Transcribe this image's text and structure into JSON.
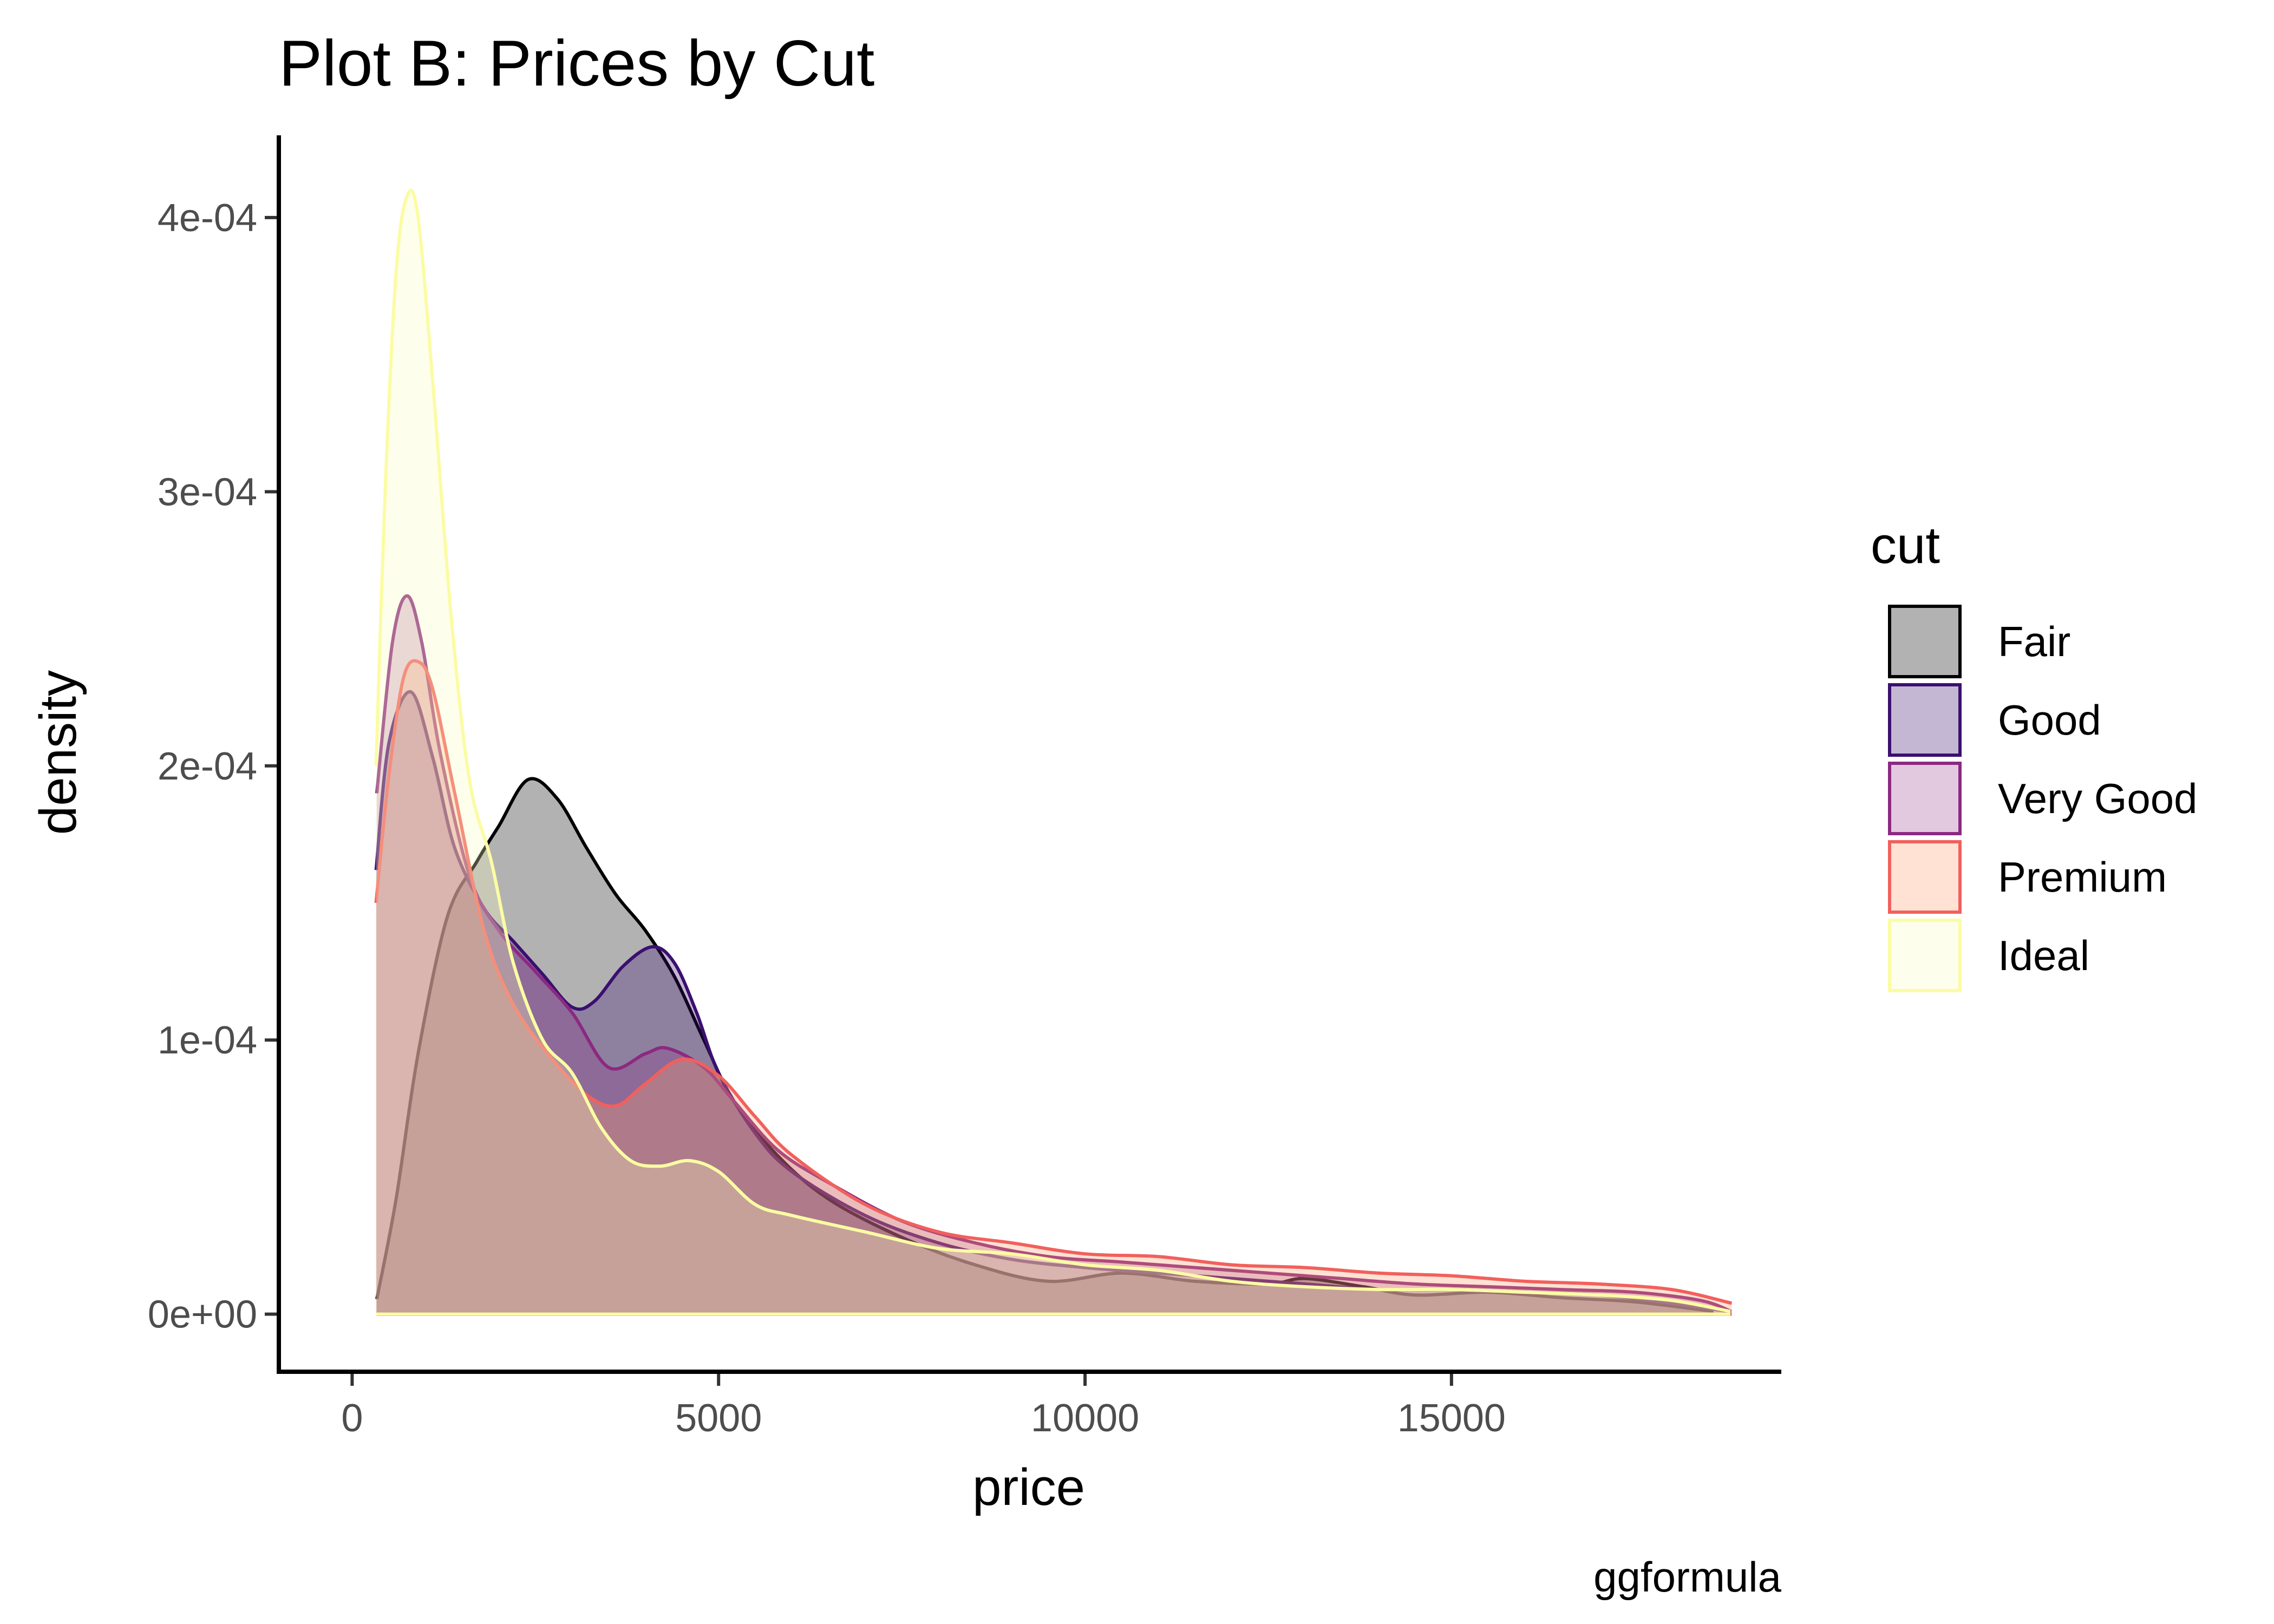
{
  "chart_data": {
    "type": "area",
    "title": "Plot B: Prices by Cut",
    "xlabel": "price",
    "ylabel": "density",
    "caption": "ggformula",
    "xlim": [
      -1000,
      19500
    ],
    "ylim": [
      -2.1e-05,
      0.00043
    ],
    "x_ticks": [
      0,
      5000,
      10000,
      15000
    ],
    "x_tick_labels": [
      "0",
      "5000",
      "10000",
      "15000"
    ],
    "y_ticks": [
      0,
      0.0001,
      0.0002,
      0.0003,
      0.0004
    ],
    "y_tick_labels": [
      "0e+00",
      "1e-04",
      "2e-04",
      "3e-04",
      "4e-04"
    ],
    "grid": false,
    "legend": {
      "title": "cut",
      "placement": "right"
    },
    "series": [
      {
        "name": "Fair",
        "color": "#000004",
        "fill": "#000004",
        "fill_opacity": 0.3,
        "points": [
          [
            337,
            5.5e-06
          ],
          [
            600,
            4.2e-05
          ],
          [
            900,
            9.5e-05
          ],
          [
            1300,
            0.000145
          ],
          [
            1700,
            0.000165
          ],
          [
            2000,
            0.000178
          ],
          [
            2400,
            0.000195
          ],
          [
            2800,
            0.000188
          ],
          [
            3200,
            0.00017
          ],
          [
            3600,
            0.000153
          ],
          [
            4000,
            0.00014
          ],
          [
            4400,
            0.000123
          ],
          [
            4800,
            0.0001
          ],
          [
            5200,
            7.8e-05
          ],
          [
            5800,
            5.8e-05
          ],
          [
            6500,
            4.2e-05
          ],
          [
            7500,
            2.8e-05
          ],
          [
            8500,
            1.8e-05
          ],
          [
            9500,
            1.2e-05
          ],
          [
            10500,
            1.5e-05
          ],
          [
            11500,
            1.2e-05
          ],
          [
            12500,
            1.1e-05
          ],
          [
            13000,
            1.3e-05
          ],
          [
            13800,
            1e-05
          ],
          [
            14500,
            7e-06
          ],
          [
            15500,
            8e-06
          ],
          [
            16500,
            6e-06
          ],
          [
            17500,
            4.5e-06
          ],
          [
            18574,
            1e-06
          ]
        ]
      },
      {
        "name": "Good",
        "color": "#3b0f70",
        "fill": "#3b0f70",
        "fill_opacity": 0.3,
        "points": [
          [
            327,
            0.000162
          ],
          [
            500,
            0.000208
          ],
          [
            800,
            0.000227
          ],
          [
            1100,
            0.000203
          ],
          [
            1400,
            0.00017
          ],
          [
            1800,
            0.000148
          ],
          [
            2200,
            0.000136
          ],
          [
            2600,
            0.000124
          ],
          [
            3000,
            0.000112
          ],
          [
            3300,
            0.000114
          ],
          [
            3700,
            0.000127
          ],
          [
            4100,
            0.000134
          ],
          [
            4400,
            0.000128
          ],
          [
            4700,
            0.00011
          ],
          [
            5000,
            8.8e-05
          ],
          [
            5500,
            6.6e-05
          ],
          [
            6000,
            5.2e-05
          ],
          [
            7000,
            3.6e-05
          ],
          [
            8000,
            2.6e-05
          ],
          [
            9000,
            2e-05
          ],
          [
            10000,
            1.7e-05
          ],
          [
            11000,
            1.5e-05
          ],
          [
            12000,
            1.3e-05
          ],
          [
            13000,
            1.1e-05
          ],
          [
            14000,
            9e-06
          ],
          [
            15000,
            9e-06
          ],
          [
            16000,
            8e-06
          ],
          [
            17000,
            7e-06
          ],
          [
            18000,
            4e-06
          ],
          [
            18788,
            1e-06
          ]
        ]
      },
      {
        "name": "Very Good",
        "color": "#8c2981",
        "fill": "#8c2981",
        "fill_opacity": 0.25,
        "points": [
          [
            336,
            0.00019
          ],
          [
            550,
            0.000245
          ],
          [
            750,
            0.000262
          ],
          [
            950,
            0.000245
          ],
          [
            1200,
            0.000205
          ],
          [
            1600,
            0.00016
          ],
          [
            2000,
            0.00014
          ],
          [
            2500,
            0.000125
          ],
          [
            3000,
            0.00011
          ],
          [
            3500,
            9e-05
          ],
          [
            4000,
            9.5e-05
          ],
          [
            4300,
            9.7e-05
          ],
          [
            4800,
            9e-05
          ],
          [
            5200,
            7.8e-05
          ],
          [
            5800,
            6e-05
          ],
          [
            6500,
            4.8e-05
          ],
          [
            7500,
            3.4e-05
          ],
          [
            8500,
            2.6e-05
          ],
          [
            9500,
            2.1e-05
          ],
          [
            10500,
            1.9e-05
          ],
          [
            11500,
            1.7e-05
          ],
          [
            12500,
            1.5e-05
          ],
          [
            13500,
            1.3e-05
          ],
          [
            14500,
            1.1e-05
          ],
          [
            15500,
            1e-05
          ],
          [
            16500,
            9e-06
          ],
          [
            17500,
            8e-06
          ],
          [
            18400,
            5e-06
          ],
          [
            18818,
            1e-06
          ]
        ]
      },
      {
        "name": "Premium",
        "color": "#fe9f6d",
        "fill": "#fe9f6d",
        "fill_opacity": 0.3,
        "stroke": "#f1605d",
        "points": [
          [
            326,
            0.00015
          ],
          [
            500,
            0.000196
          ],
          [
            700,
            0.000232
          ],
          [
            900,
            0.000238
          ],
          [
            1100,
            0.000228
          ],
          [
            1400,
            0.00019
          ],
          [
            1800,
            0.00014
          ],
          [
            2200,
            0.000113
          ],
          [
            2700,
            9.4e-05
          ],
          [
            3200,
            8e-05
          ],
          [
            3600,
            7.6e-05
          ],
          [
            4000,
            8.4e-05
          ],
          [
            4500,
            9.3e-05
          ],
          [
            5000,
            8.7e-05
          ],
          [
            5500,
            7.2e-05
          ],
          [
            6000,
            5.8e-05
          ],
          [
            7000,
            4e-05
          ],
          [
            8000,
            3e-05
          ],
          [
            9000,
            2.6e-05
          ],
          [
            10000,
            2.2e-05
          ],
          [
            11000,
            2.1e-05
          ],
          [
            12000,
            1.8e-05
          ],
          [
            13000,
            1.7e-05
          ],
          [
            14000,
            1.5e-05
          ],
          [
            15000,
            1.4e-05
          ],
          [
            16000,
            1.2e-05
          ],
          [
            17000,
            1.1e-05
          ],
          [
            18000,
            9e-06
          ],
          [
            18823,
            4e-06
          ]
        ]
      },
      {
        "name": "Ideal",
        "color": "#fcfdbf",
        "fill": "#fcfdbf",
        "fill_opacity": 0.3,
        "stroke": "#fbfca3",
        "points": [
          [
            326,
            0.0002
          ],
          [
            450,
            0.0003
          ],
          [
            600,
            0.00038
          ],
          [
            750,
            0.000408
          ],
          [
            900,
            0.0004
          ],
          [
            1100,
            0.00034
          ],
          [
            1350,
            0.000255
          ],
          [
            1600,
            0.000195
          ],
          [
            1900,
            0.000165
          ],
          [
            2200,
            0.000128
          ],
          [
            2600,
            0.0001
          ],
          [
            3000,
            8.8e-05
          ],
          [
            3400,
            6.8e-05
          ],
          [
            3800,
            5.6e-05
          ],
          [
            4200,
            5.4e-05
          ],
          [
            4600,
            5.6e-05
          ],
          [
            5000,
            5.2e-05
          ],
          [
            5500,
            4e-05
          ],
          [
            6000,
            3.6e-05
          ],
          [
            7000,
            3e-05
          ],
          [
            8000,
            2.4e-05
          ],
          [
            9000,
            2.2e-05
          ],
          [
            10000,
            1.8e-05
          ],
          [
            11000,
            1.6e-05
          ],
          [
            12000,
            1.2e-05
          ],
          [
            13000,
            1e-05
          ],
          [
            14000,
            9e-06
          ],
          [
            15000,
            9e-06
          ],
          [
            16000,
            8e-06
          ],
          [
            17000,
            7e-06
          ],
          [
            18000,
            5e-06
          ],
          [
            18806,
            1e-06
          ]
        ]
      }
    ]
  }
}
